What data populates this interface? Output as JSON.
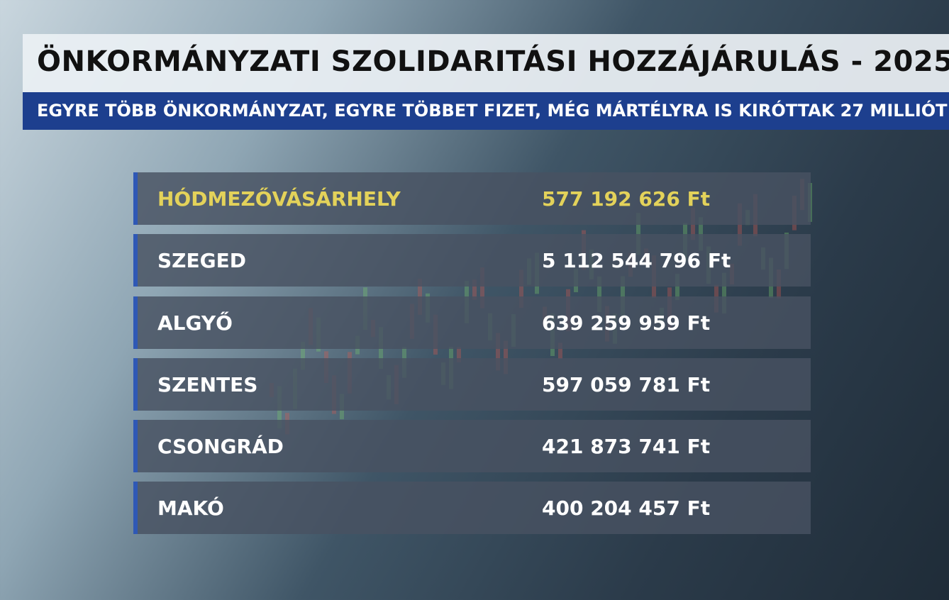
{
  "header": {
    "title": "ÖNKORMÁNYZATI SZOLIDARITÁSI HOZZÁJÁRULÁS - 2025",
    "subtitle": "EGYRE TÖBB ÖNKORMÁNYZAT, EGYRE TÖBBET FIZET, MÉG MÁRTÉLYRA IS KIRÓTTAK 27 MILLIÓT"
  },
  "table": {
    "rows": [
      [
        "HÓDMEZŐVÁSÁRHELY",
        "577 192 626 Ft"
      ],
      [
        "SZEGED",
        "5 112 544 796 Ft"
      ],
      [
        "ALGYŐ",
        "639 259 959 Ft"
      ],
      [
        "SZENTES",
        "597 059 781 Ft"
      ],
      [
        "CSONGRÁD",
        "421 873 741 Ft"
      ],
      [
        "MAKÓ",
        "400 204 457 Ft"
      ]
    ]
  }
}
